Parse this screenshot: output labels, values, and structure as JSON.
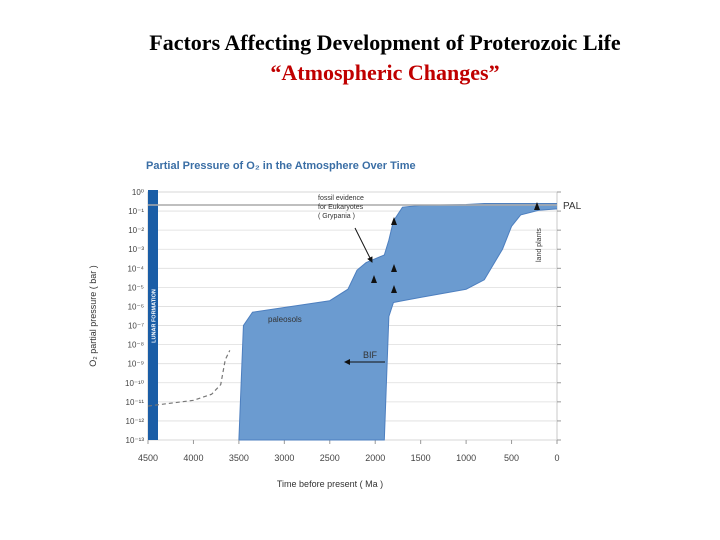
{
  "slide": {
    "title": "Factors Affecting Development of Proterozoic Life",
    "subtitle": "“Atmospheric Changes”"
  },
  "chart_data": {
    "type": "range-area",
    "title": "Partial Pressure of O₂ in the Atmosphere Over Time",
    "x_label": "Time before present ( Ma )",
    "y_label": "O₂ partial pressure ( bar )",
    "xlim": [
      4500,
      0
    ],
    "xticks": [
      4500,
      4000,
      3500,
      3000,
      2500,
      2000,
      1500,
      1000,
      500,
      0
    ],
    "ylim": [
      1e-13,
      1
    ],
    "log_scale_y": true,
    "grid": true,
    "yticks": [
      {
        "value": 1,
        "label": "10⁰"
      },
      {
        "value": 0.1,
        "label": "10⁻¹"
      },
      {
        "value": 0.01,
        "label": "10⁻²"
      },
      {
        "value": 0.001,
        "label": "10⁻³"
      },
      {
        "value": 0.0001,
        "label": "10⁻⁴"
      },
      {
        "value": 1e-05,
        "label": "10⁻⁵"
      },
      {
        "value": 1e-06,
        "label": "10⁻⁶"
      },
      {
        "value": 1e-07,
        "label": "10⁻⁷"
      },
      {
        "value": 1e-08,
        "label": "10⁻⁸"
      },
      {
        "value": 1e-09,
        "label": "10⁻⁹"
      },
      {
        "value": 1e-10,
        "label": "10⁻¹⁰"
      },
      {
        "value": 1e-11,
        "label": "10⁻¹¹"
      },
      {
        "value": 1e-12,
        "label": "10⁻¹²"
      },
      {
        "value": 1e-13,
        "label": "10⁻¹³"
      }
    ],
    "band": {
      "color": "#6b9bd0",
      "x": [
        3500,
        3450,
        3350,
        2500,
        2300,
        2200,
        2100,
        1900,
        1850,
        1800,
        1700,
        1500,
        1000,
        800,
        600,
        500,
        400,
        200,
        0
      ],
      "high": [
        1e-13,
        1e-07,
        5e-07,
        2e-06,
        8e-06,
        8e-05,
        0.0002,
        0.0005,
        0.003,
        0.03,
        0.16,
        0.2,
        0.22,
        0.25,
        0.25,
        0.25,
        0.25,
        0.25,
        0.25
      ],
      "low": [
        1e-13,
        1e-13,
        1e-13,
        1e-13,
        1e-13,
        1e-13,
        1e-13,
        1e-13,
        3e-07,
        1.6e-06,
        2e-06,
        3e-06,
        8e-06,
        2.5e-05,
        0.001,
        0.016,
        0.063,
        0.11,
        0.13
      ]
    },
    "dashed_line": {
      "color": "#777777",
      "x": [
        4500,
        4000,
        3800,
        3700,
        3650,
        3600
      ],
      "values": [
        6e-12,
        1.2e-11,
        2.5e-11,
        8e-11,
        1.6e-09,
        5e-09
      ]
    },
    "annotations": {
      "fossil": [
        "fossil evidence",
        "for Eukaryotes",
        "( Grypania )"
      ],
      "paleosols": "paleosols",
      "bif": "BIF",
      "pal": "PAL",
      "land_plants": "land plants",
      "lunar": "LUNAR FORMATION"
    }
  }
}
